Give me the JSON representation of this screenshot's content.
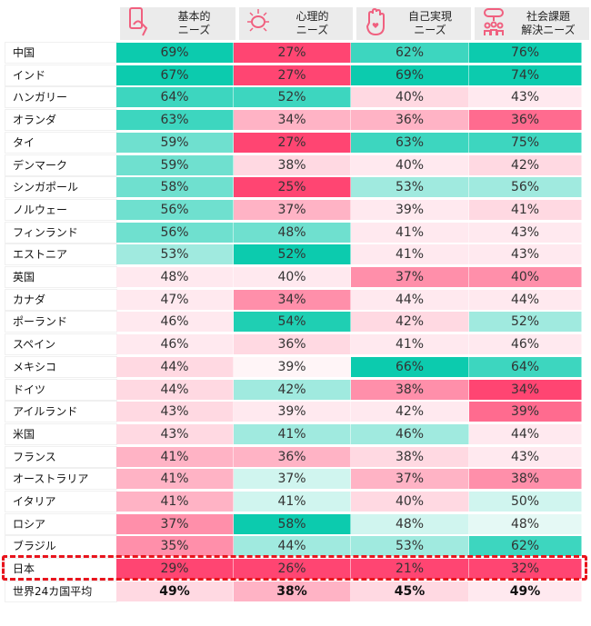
{
  "chart_data": {
    "type": "heatmap",
    "columns": [
      {
        "label_line1": "基本的",
        "label_line2": "ニーズ",
        "icon": "smartphone-hand-icon"
      },
      {
        "label_line1": "心理的",
        "label_line2": "ニーズ",
        "icon": "brain-icon"
      },
      {
        "label_line1": "自己実現",
        "label_line2": "ニーズ",
        "icon": "raised-hand-heart-icon"
      },
      {
        "label_line1": "社会課題",
        "label_line2": "解決ニーズ",
        "icon": "community-icon"
      }
    ],
    "highlight_row": "日本",
    "rows": [
      {
        "name": "中国",
        "values": [
          "69%",
          "27%",
          "62%",
          "76%"
        ],
        "colors": [
          "#0ccbae",
          "#ff4572",
          "#3dd6bf",
          "#0ccbae"
        ]
      },
      {
        "name": "インド",
        "values": [
          "67%",
          "27%",
          "69%",
          "74%"
        ],
        "colors": [
          "#0ccbae",
          "#ff4572",
          "#0ccbae",
          "#0ccbae"
        ]
      },
      {
        "name": "ハンガリー",
        "values": [
          "64%",
          "52%",
          "40%",
          "43%"
        ],
        "colors": [
          "#3dd6bf",
          "#3dd6bf",
          "#ffd9e2",
          "#ffe9ef"
        ]
      },
      {
        "name": "オランダ",
        "values": [
          "63%",
          "34%",
          "36%",
          "36%"
        ],
        "colors": [
          "#3dd6bf",
          "#ffb3c5",
          "#ffb3c5",
          "#ff6b8f"
        ]
      },
      {
        "name": "タイ",
        "values": [
          "59%",
          "27%",
          "63%",
          "75%"
        ],
        "colors": [
          "#6fe0cf",
          "#ff4572",
          "#3dd6bf",
          "#3dd6bf"
        ]
      },
      {
        "name": "デンマーク",
        "values": [
          "59%",
          "38%",
          "40%",
          "42%"
        ],
        "colors": [
          "#6fe0cf",
          "#ffd9e2",
          "#ffe9ef",
          "#ffd9e2"
        ]
      },
      {
        "name": "シンガポール",
        "values": [
          "58%",
          "25%",
          "53%",
          "56%"
        ],
        "colors": [
          "#6fe0cf",
          "#ff4572",
          "#a0eadf",
          "#a0eadf"
        ]
      },
      {
        "name": "ノルウェー",
        "values": [
          "56%",
          "37%",
          "39%",
          "41%"
        ],
        "colors": [
          "#6fe0cf",
          "#ffb3c5",
          "#ffe9ef",
          "#ffd9e2"
        ]
      },
      {
        "name": "フィンランド",
        "values": [
          "56%",
          "48%",
          "41%",
          "43%"
        ],
        "colors": [
          "#6fe0cf",
          "#6fe0cf",
          "#ffe9ef",
          "#ffe9ef"
        ]
      },
      {
        "name": "エストニア",
        "values": [
          "53%",
          "52%",
          "41%",
          "43%"
        ],
        "colors": [
          "#a0eadf",
          "#0ccbae",
          "#ffe9ef",
          "#ffe9ef"
        ]
      },
      {
        "name": "英国",
        "values": [
          "48%",
          "40%",
          "37%",
          "40%"
        ],
        "colors": [
          "#ffe9ef",
          "#ffe9ef",
          "#ff8faa",
          "#ff8faa"
        ]
      },
      {
        "name": "カナダ",
        "values": [
          "47%",
          "34%",
          "44%",
          "44%"
        ],
        "colors": [
          "#ffe9ef",
          "#ff8faa",
          "#ffe9ef",
          "#ffe9ef"
        ]
      },
      {
        "name": "ポーランド",
        "values": [
          "46%",
          "54%",
          "42%",
          "52%"
        ],
        "colors": [
          "#ffe9ef",
          "#1fcfb3",
          "#ffd9e2",
          "#a0eadf"
        ]
      },
      {
        "name": "スペイン",
        "values": [
          "46%",
          "36%",
          "41%",
          "46%"
        ],
        "colors": [
          "#ffe9ef",
          "#ffd9e2",
          "#ffe9ef",
          "#ffe9ef"
        ]
      },
      {
        "name": "メキシコ",
        "values": [
          "44%",
          "39%",
          "66%",
          "64%"
        ],
        "colors": [
          "#ffd9e2",
          "#fff5f7",
          "#0ccbae",
          "#3dd6bf"
        ]
      },
      {
        "name": "ドイツ",
        "values": [
          "44%",
          "42%",
          "38%",
          "34%"
        ],
        "colors": [
          "#ffd9e2",
          "#a0eadf",
          "#ff8faa",
          "#ff4572"
        ]
      },
      {
        "name": "アイルランド",
        "values": [
          "43%",
          "39%",
          "42%",
          "39%"
        ],
        "colors": [
          "#ffd9e2",
          "#ffe9ef",
          "#ffe9ef",
          "#ff6b8f"
        ]
      },
      {
        "name": "米国",
        "values": [
          "43%",
          "41%",
          "46%",
          "44%"
        ],
        "colors": [
          "#ffd9e2",
          "#a0eadf",
          "#a0eadf",
          "#ffe9ef"
        ]
      },
      {
        "name": "フランス",
        "values": [
          "41%",
          "36%",
          "38%",
          "43%"
        ],
        "colors": [
          "#ffb3c5",
          "#ffb3c5",
          "#ffd9e2",
          "#ffe9ef"
        ]
      },
      {
        "name": "オーストラリア",
        "values": [
          "41%",
          "37%",
          "37%",
          "38%"
        ],
        "colors": [
          "#ffb3c5",
          "#d0f5ef",
          "#ffb3c5",
          "#ff8faa"
        ]
      },
      {
        "name": "イタリア",
        "values": [
          "41%",
          "41%",
          "40%",
          "50%"
        ],
        "colors": [
          "#ffb3c5",
          "#d0f5ef",
          "#ffd9e2",
          "#d0f5ef"
        ]
      },
      {
        "name": "ロシア",
        "values": [
          "37%",
          "58%",
          "48%",
          "48%"
        ],
        "colors": [
          "#ff8faa",
          "#0ccbae",
          "#d0f5ef",
          "#e5f9f5"
        ]
      },
      {
        "name": "ブラジル",
        "values": [
          "35%",
          "44%",
          "53%",
          "62%"
        ],
        "colors": [
          "#ff8faa",
          "#a0eadf",
          "#a0eadf",
          "#3dd6bf"
        ]
      },
      {
        "name": "日本",
        "values": [
          "29%",
          "26%",
          "21%",
          "32%"
        ],
        "colors": [
          "#ff4572",
          "#ff4572",
          "#ff4572",
          "#ff4572"
        ]
      },
      {
        "name": "世界24カ国平均",
        "values": [
          "49%",
          "38%",
          "45%",
          "49%"
        ],
        "colors": [
          "#ffd9e2",
          "#ffb3c5",
          "#ffd9e2",
          "#ffe9ef"
        ],
        "bold": true
      }
    ]
  },
  "colors": {
    "icon": "#f0607f",
    "header_bg": "#ebebeb",
    "highlight_border": "#e8141c"
  }
}
